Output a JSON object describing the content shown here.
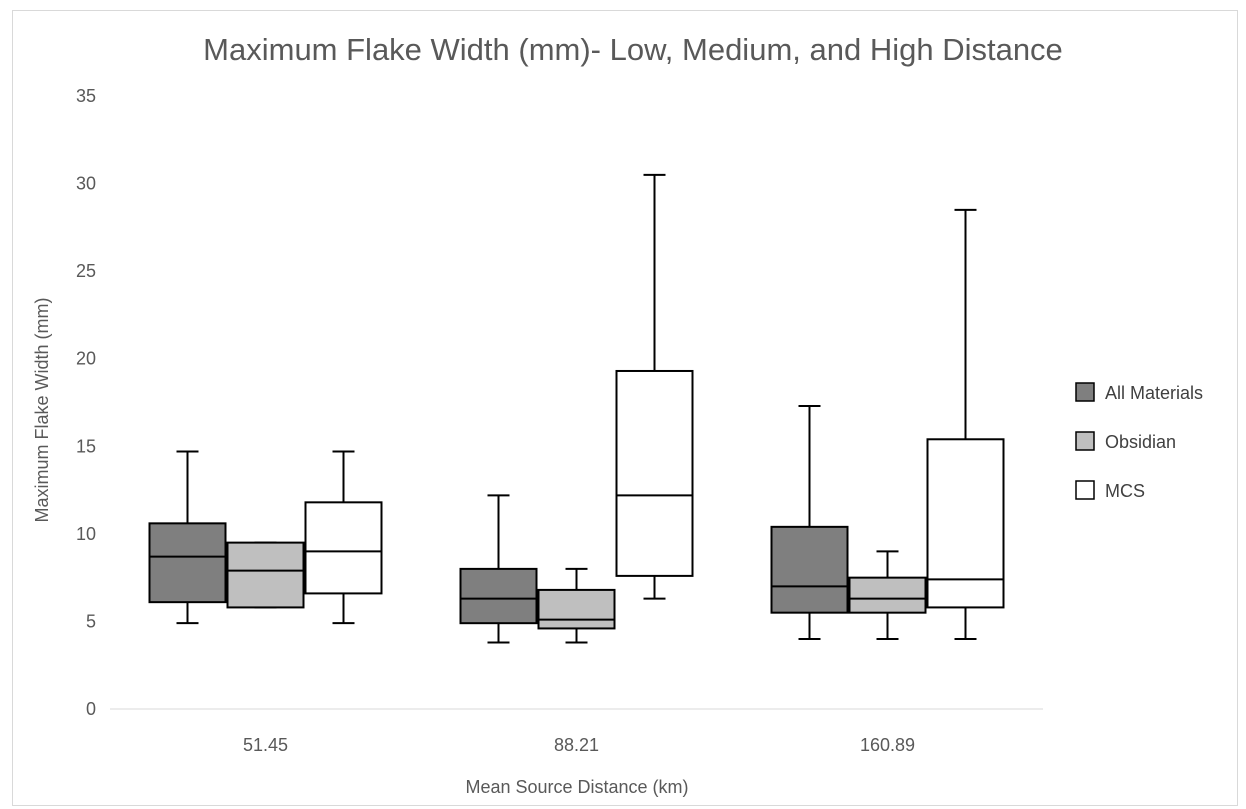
{
  "chart_data": {
    "type": "box",
    "title": "Maximum Flake Width (mm)- Low, Medium, and High Distance",
    "xlabel": "Mean Source Distance (km)",
    "ylabel": "Maximum Flake Width (mm)",
    "ylim": [
      0,
      35
    ],
    "yticks": [
      "0",
      "5",
      "10",
      "15",
      "20",
      "25",
      "30",
      "35"
    ],
    "categories": [
      "51.45",
      "88.21",
      "160.89"
    ],
    "legend_position": "right",
    "grid": false,
    "series": [
      {
        "name": "All Materials",
        "color": "#7f7f7f",
        "boxes": [
          {
            "min": 4.9,
            "q1": 6.1,
            "median": 8.7,
            "q3": 10.6,
            "max": 14.7
          },
          {
            "min": 3.8,
            "q1": 4.9,
            "median": 6.3,
            "q3": 8.0,
            "max": 12.2
          },
          {
            "min": 4.0,
            "q1": 5.5,
            "median": 7.0,
            "q3": 10.4,
            "max": 17.3
          }
        ]
      },
      {
        "name": "Obsidian",
        "color": "#bfbfbf",
        "boxes": [
          {
            "min": 5.8,
            "q1": 5.8,
            "median": 7.9,
            "q3": 9.5,
            "max": 9.5
          },
          {
            "min": 3.8,
            "q1": 4.6,
            "median": 5.1,
            "q3": 6.8,
            "max": 8.0
          },
          {
            "min": 4.0,
            "q1": 5.5,
            "median": 6.3,
            "q3": 7.5,
            "max": 9.0
          }
        ]
      },
      {
        "name": "MCS",
        "color": "#ffffff",
        "boxes": [
          {
            "min": 4.9,
            "q1": 6.6,
            "median": 9.0,
            "q3": 11.8,
            "max": 14.7
          },
          {
            "min": 6.3,
            "q1": 7.6,
            "median": 12.2,
            "q3": 19.3,
            "max": 30.5
          },
          {
            "min": 4.0,
            "q1": 5.8,
            "median": 7.4,
            "q3": 15.4,
            "max": 28.5
          }
        ]
      }
    ]
  }
}
